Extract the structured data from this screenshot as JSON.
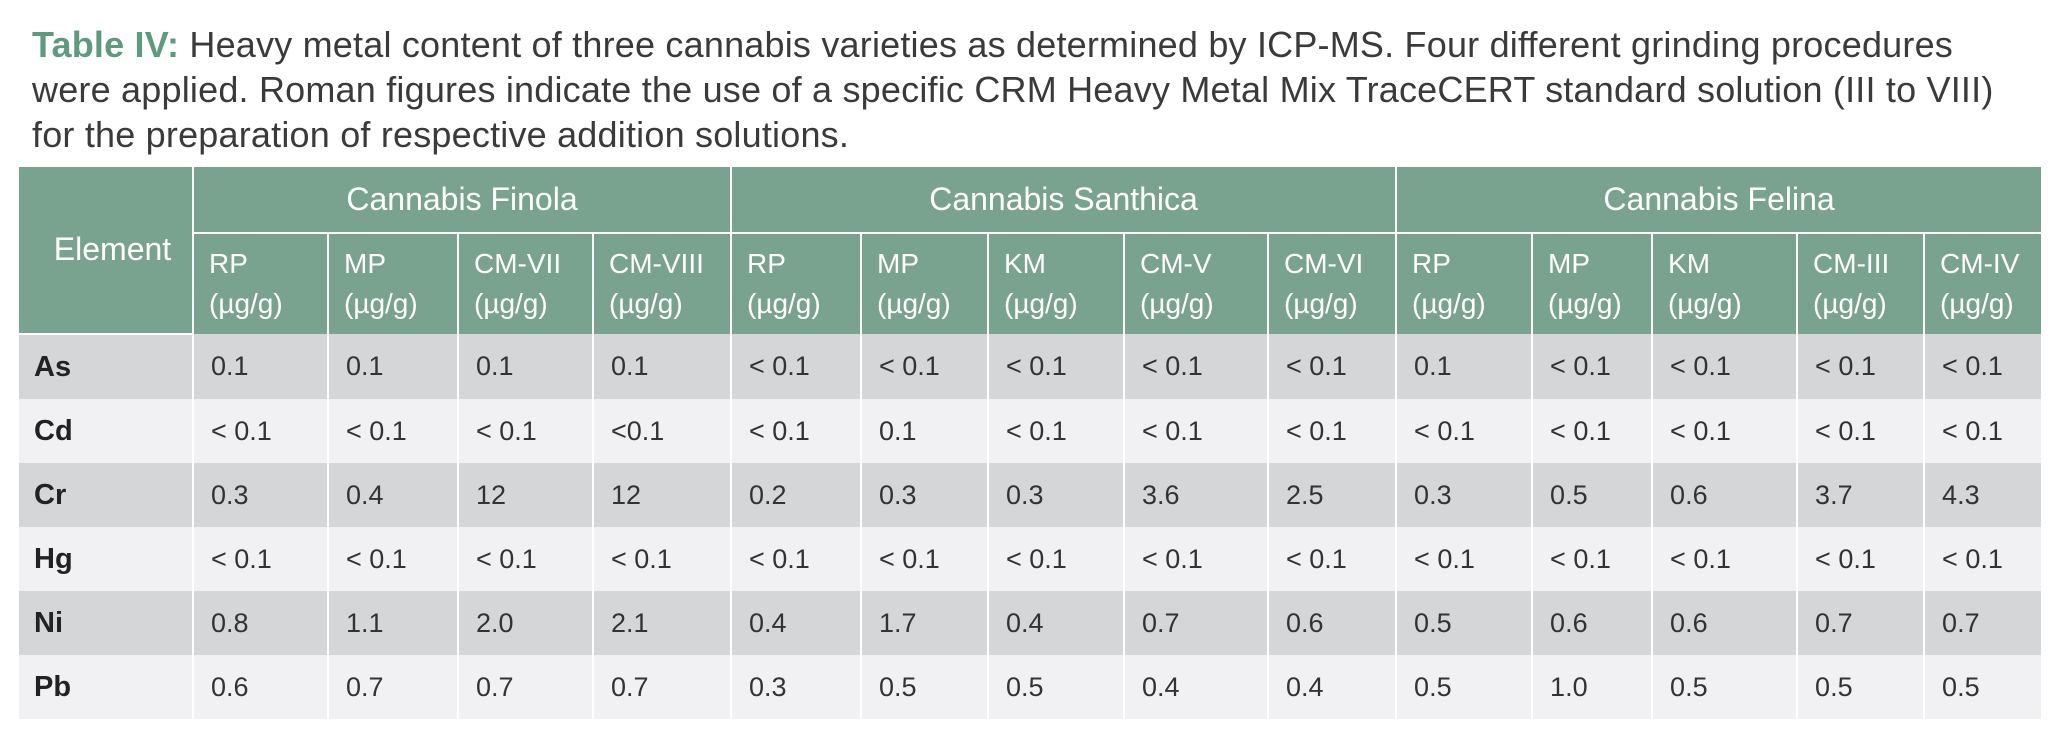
{
  "caption": {
    "label": "Table IV:",
    "text": " Heavy metal content of three cannabis varieties as determined by ICP-MS. Four different grinding procedures were applied. Roman figures indicate the use of a specific CRM Heavy Metal Mix TraceCERT standard solution (III to VIII) for the preparation of respective addition solutions."
  },
  "table": {
    "element_header": "Element",
    "groups": [
      {
        "name": "Cannabis Finola",
        "columns": [
          {
            "label": "RP",
            "unit": "(µg/g)"
          },
          {
            "label": "MP",
            "unit": "(µg/g)"
          },
          {
            "label": "CM-VII",
            "unit": "(µg/g)"
          },
          {
            "label": "CM-VIII",
            "unit": "(µg/g)"
          }
        ]
      },
      {
        "name": "Cannabis Santhica",
        "columns": [
          {
            "label": "RP",
            "unit": "(µg/g)"
          },
          {
            "label": "MP",
            "unit": "(µg/g)"
          },
          {
            "label": "KM",
            "unit": "(µg/g)"
          },
          {
            "label": "CM-V",
            "unit": "(µg/g)"
          },
          {
            "label": "CM-VI",
            "unit": "(µg/g)"
          }
        ]
      },
      {
        "name": "Cannabis Felina",
        "columns": [
          {
            "label": "RP",
            "unit": "(µg/g)"
          },
          {
            "label": "MP",
            "unit": "(µg/g)"
          },
          {
            "label": "KM",
            "unit": "(µg/g)"
          },
          {
            "label": "CM-III",
            "unit": "(µg/g)"
          },
          {
            "label": "CM-IV",
            "unit": "(µg/g)"
          }
        ]
      }
    ],
    "rows": [
      {
        "element": "As",
        "values": [
          "0.1",
          "0.1",
          "0.1",
          "0.1",
          "< 0.1",
          "< 0.1",
          "< 0.1",
          "< 0.1",
          "< 0.1",
          "0.1",
          "< 0.1",
          "< 0.1",
          "< 0.1",
          "< 0.1"
        ]
      },
      {
        "element": "Cd",
        "values": [
          "< 0.1",
          "< 0.1",
          "< 0.1",
          "<0.1",
          "< 0.1",
          "0.1",
          "< 0.1",
          "< 0.1",
          "< 0.1",
          "< 0.1",
          "< 0.1",
          "< 0.1",
          "< 0.1",
          "< 0.1"
        ]
      },
      {
        "element": "Cr",
        "values": [
          "0.3",
          "0.4",
          "12",
          "12",
          "0.2",
          "0.3",
          "0.3",
          "3.6",
          "2.5",
          "0.3",
          "0.5",
          "0.6",
          "3.7",
          "4.3"
        ]
      },
      {
        "element": "Hg",
        "values": [
          "< 0.1",
          "< 0.1",
          "< 0.1",
          "< 0.1",
          "< 0.1",
          "< 0.1",
          "< 0.1",
          "< 0.1",
          "< 0.1",
          "< 0.1",
          "< 0.1",
          "< 0.1",
          "< 0.1",
          "< 0.1"
        ]
      },
      {
        "element": "Ni",
        "values": [
          "0.8",
          "1.1",
          "2.0",
          "2.1",
          "0.4",
          "1.7",
          "0.4",
          "0.7",
          "0.6",
          "0.5",
          "0.6",
          "0.6",
          "0.7",
          "0.7"
        ]
      },
      {
        "element": "Pb",
        "values": [
          "0.6",
          "0.7",
          "0.7",
          "0.7",
          "0.3",
          "0.5",
          "0.5",
          "0.4",
          "0.4",
          "0.5",
          "1.0",
          "0.5",
          "0.5",
          "0.5"
        ]
      }
    ]
  },
  "colors": {
    "accent": "#5f9a7f",
    "header_bg": "#7aa38f",
    "row_odd": "#d5d6d8",
    "row_even": "#f1f1f3"
  }
}
